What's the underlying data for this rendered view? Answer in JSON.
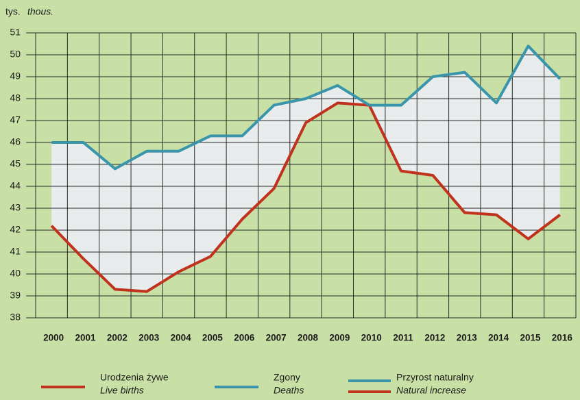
{
  "chart_data": {
    "type": "line",
    "y_label": "tys.",
    "y_label_italic": "thous.",
    "categories": [
      "2000",
      "2001",
      "2002",
      "2003",
      "2004",
      "2005",
      "2006",
      "2007",
      "2008",
      "2009",
      "2010",
      "2011",
      "2012",
      "2013",
      "2014",
      "2015",
      "2016"
    ],
    "series": [
      {
        "name": "Urodzenia żywe",
        "name_italic": "Live births",
        "color": "#c0321e",
        "values": [
          42.2,
          40.7,
          39.3,
          39.2,
          40.1,
          40.8,
          42.5,
          43.9,
          46.9,
          47.8,
          47.7,
          44.7,
          44.5,
          42.8,
          42.7,
          41.6,
          42.7
        ]
      },
      {
        "name": "Zgony",
        "name_italic": "Deaths",
        "color": "#3a95ab",
        "values": [
          46.0,
          46.0,
          44.8,
          45.6,
          45.6,
          46.3,
          46.3,
          47.7,
          48.0,
          48.6,
          47.7,
          47.7,
          49.0,
          49.2,
          47.8,
          50.4,
          48.9
        ]
      }
    ],
    "fill_legend": {
      "name": "Przyrost naturalny",
      "name_italic": "Natural increase",
      "color": "#e8ecec"
    },
    "ylim": [
      38,
      51
    ],
    "yticks": [
      38,
      39,
      40,
      41,
      42,
      43,
      44,
      45,
      46,
      47,
      48,
      49,
      50,
      51
    ],
    "grid": true
  }
}
